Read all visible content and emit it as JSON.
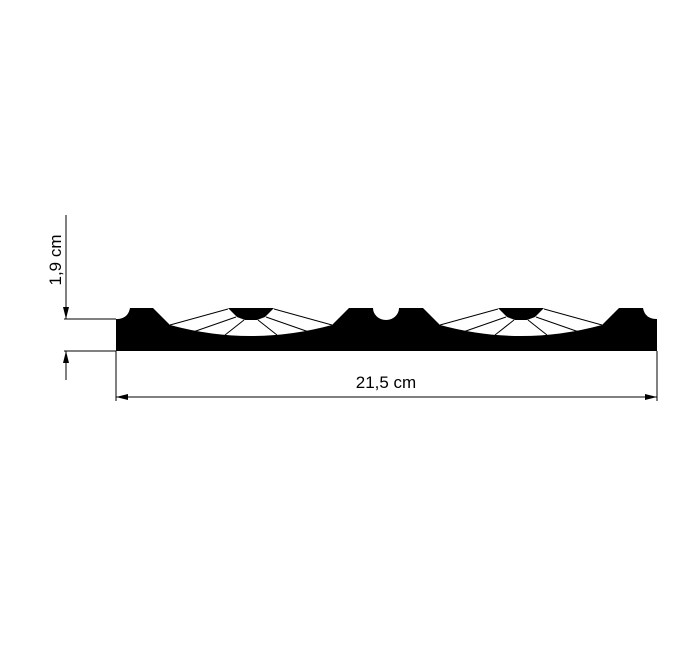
{
  "drawing": {
    "height_label": "1,9 cm",
    "width_label": "21,5 cm",
    "profile_color": "#000000",
    "background_color": "#ffffff"
  }
}
